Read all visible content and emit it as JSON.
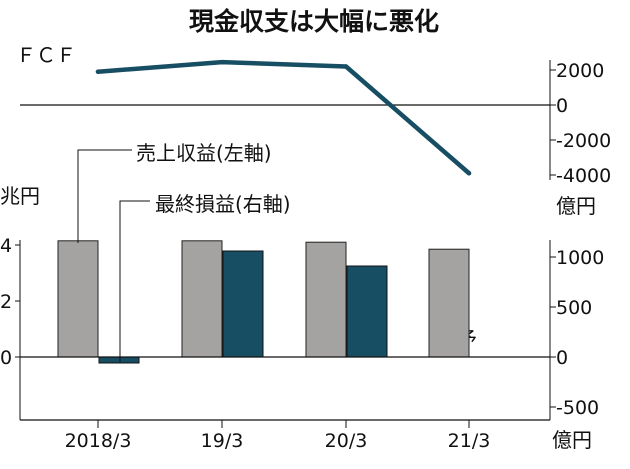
{
  "chart_data": {
    "title": "現金収支は大幅に悪化",
    "categories": [
      "2018/3",
      "19/3",
      "20/3",
      "21/3"
    ],
    "fcf": {
      "type": "line",
      "label": "ＦＣＦ",
      "unit": "億円",
      "values": [
        1900,
        2450,
        2200,
        -3900
      ],
      "ticks": [
        "2000",
        "0",
        "-2000",
        "-4000"
      ],
      "tick_values": [
        2000,
        0,
        -2000,
        -4000
      ],
      "ylim": [
        -4000,
        2500
      ],
      "color": "#184e63"
    },
    "bars": {
      "type": "bar",
      "left_unit": "兆円",
      "right_unit": "億円",
      "left_ticks": [
        "4",
        "2",
        "0"
      ],
      "left_tick_values": [
        4,
        2,
        0
      ],
      "right_ticks": [
        "1000",
        "500",
        "0",
        "-500"
      ],
      "right_tick_values": [
        1000,
        500,
        0,
        -500
      ],
      "series": [
        {
          "name": "売上収益(左軸)",
          "axis": "left",
          "color": "#a5a3a1",
          "values": [
            4.15,
            4.15,
            4.1,
            3.85
          ]
        },
        {
          "name": "最終損益(右軸)",
          "axis": "right",
          "color": "#184e63",
          "values": [
            -60,
            1060,
            910,
            null
          ]
        }
      ],
      "annotation": "予",
      "ylim_left": [
        -2,
        5
      ]
    }
  }
}
